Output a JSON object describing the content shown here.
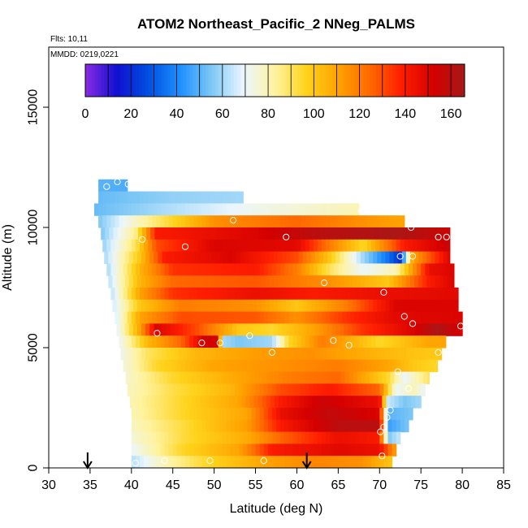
{
  "chart_data": {
    "type": "heatmap",
    "title": "ATOM2 Northeast_Pacific_2 NNeg_PALMS",
    "flights_label": "Flts: 10,11",
    "date_label": "MMDD: 0219,0221",
    "xlabel": "Latitude (deg N)",
    "ylabel": "Altitude (m)",
    "xlim": [
      30,
      85
    ],
    "ylim": [
      0,
      17500
    ],
    "x_ticks": [
      "30",
      "35",
      "40",
      "45",
      "50",
      "55",
      "60",
      "65",
      "70",
      "75",
      "80",
      "85"
    ],
    "y_ticks": [
      "0",
      "5000",
      "10000",
      "15000"
    ],
    "colorbar": {
      "range": [
        0,
        166
      ],
      "ticks": [
        "0",
        "20",
        "40",
        "60",
        "80",
        "100",
        "120",
        "140",
        "160"
      ],
      "colors": [
        "#8a2be2",
        "#1010d0",
        "#0050e0",
        "#1e90ff",
        "#7ec8f5",
        "#eaf6ff",
        "#fff3a0",
        "#ffd21a",
        "#ffa200",
        "#ff6a00",
        "#ff1e00",
        "#d40000",
        "#a81818"
      ]
    },
    "arrows_at_latitude": [
      34.7,
      61.2
    ],
    "layers": [
      {
        "ybot": 11500,
        "ytop": 12000,
        "xmin": 36,
        "xmax": 39.5,
        "values": [
          [
            36,
            50
          ],
          [
            39.5,
            48
          ]
        ]
      },
      {
        "ybot": 11000,
        "ytop": 11500,
        "xmin": 36,
        "xmax": 53.5,
        "values": [
          [
            36,
            52
          ],
          [
            45,
            58
          ],
          [
            53.5,
            60
          ]
        ]
      },
      {
        "ybot": 10500,
        "ytop": 11000,
        "xmin": 35.5,
        "xmax": 67.5,
        "values": [
          [
            35.5,
            52
          ],
          [
            45,
            62
          ],
          [
            55,
            72
          ],
          [
            67.5,
            80
          ]
        ]
      },
      {
        "ybot": 10000,
        "ytop": 10500,
        "xmin": 36,
        "xmax": 73,
        "values": [
          [
            36,
            55
          ],
          [
            41,
            80
          ],
          [
            50,
            115
          ],
          [
            60,
            125
          ],
          [
            68,
            115
          ],
          [
            73,
            110
          ]
        ]
      },
      {
        "ybot": 9500,
        "ytop": 10000,
        "xmin": 36.3,
        "xmax": 78.5,
        "values": [
          [
            36.3,
            55
          ],
          [
            40.5,
            85
          ],
          [
            43,
            140
          ],
          [
            55,
            150
          ],
          [
            62,
            160
          ],
          [
            72,
            165
          ],
          [
            78.5,
            155
          ]
        ]
      },
      {
        "ybot": 9000,
        "ytop": 9500,
        "xmin": 36.5,
        "xmax": 78.5,
        "values": [
          [
            36.5,
            58
          ],
          [
            40.5,
            90
          ],
          [
            43,
            130
          ],
          [
            50,
            150
          ],
          [
            60,
            148
          ],
          [
            64,
            120
          ],
          [
            68,
            95
          ],
          [
            73,
            140
          ],
          [
            78.5,
            155
          ]
        ]
      },
      {
        "ybot": 8500,
        "ytop": 9000,
        "xmin": 36.7,
        "xmax": 78.5,
        "values": [
          [
            36.7,
            60
          ],
          [
            41,
            100
          ],
          [
            44,
            140
          ],
          [
            52,
            150
          ],
          [
            60,
            130
          ],
          [
            64,
            100
          ],
          [
            68,
            60
          ],
          [
            71,
            35
          ],
          [
            72.5,
            20
          ],
          [
            74,
            110
          ],
          [
            78.5,
            150
          ]
        ]
      },
      {
        "ybot": 8000,
        "ytop": 8500,
        "xmin": 37,
        "xmax": 79,
        "values": [
          [
            37,
            60
          ],
          [
            41,
            105
          ],
          [
            45,
            135
          ],
          [
            55,
            140
          ],
          [
            60,
            120
          ],
          [
            64,
            90
          ],
          [
            68,
            70
          ],
          [
            72,
            80
          ],
          [
            76,
            145
          ],
          [
            79,
            150
          ]
        ]
      },
      {
        "ybot": 7500,
        "ytop": 8000,
        "xmin": 37.2,
        "xmax": 79,
        "values": [
          [
            37.2,
            62
          ],
          [
            41,
            105
          ],
          [
            45,
            125
          ],
          [
            55,
            128
          ],
          [
            64,
            115
          ],
          [
            71,
            100
          ],
          [
            76,
            140
          ],
          [
            79,
            150
          ]
        ]
      },
      {
        "ybot": 7000,
        "ytop": 7500,
        "xmin": 37.5,
        "xmax": 79.5,
        "values": [
          [
            37.5,
            62
          ],
          [
            41,
            110
          ],
          [
            45,
            135
          ],
          [
            55,
            145
          ],
          [
            62,
            140
          ],
          [
            70,
            145
          ],
          [
            79.5,
            148
          ]
        ]
      },
      {
        "ybot": 6500,
        "ytop": 7000,
        "xmin": 37.7,
        "xmax": 79.5,
        "values": [
          [
            37.7,
            65
          ],
          [
            41,
            100
          ],
          [
            46,
            120
          ],
          [
            55,
            115
          ],
          [
            60,
            100
          ],
          [
            66,
            120
          ],
          [
            72,
            150
          ],
          [
            79.5,
            150
          ]
        ]
      },
      {
        "ybot": 6000,
        "ytop": 6500,
        "xmin": 38,
        "xmax": 80,
        "values": [
          [
            38,
            65
          ],
          [
            41,
            110
          ],
          [
            46,
            130
          ],
          [
            55,
            128
          ],
          [
            60,
            115
          ],
          [
            66,
            135
          ],
          [
            72,
            148
          ],
          [
            80,
            150
          ]
        ]
      },
      {
        "ybot": 5500,
        "ytop": 6000,
        "xmin": 38.2,
        "xmax": 80,
        "values": [
          [
            38.2,
            68
          ],
          [
            41,
            110
          ],
          [
            43,
            150
          ],
          [
            48,
            130
          ],
          [
            53,
            100
          ],
          [
            57,
            95
          ],
          [
            62,
            110
          ],
          [
            68,
            135
          ],
          [
            74,
            150
          ],
          [
            77,
            165
          ],
          [
            80,
            150
          ]
        ]
      },
      {
        "ybot": 5000,
        "ytop": 5500,
        "xmin": 38.5,
        "xmax": 78,
        "values": [
          [
            38.5,
            70
          ],
          [
            42,
            105
          ],
          [
            46,
            125
          ],
          [
            49,
            155
          ],
          [
            50.5,
            150
          ],
          [
            51,
            60
          ],
          [
            53,
            55
          ],
          [
            57,
            60
          ],
          [
            59,
            95
          ],
          [
            63,
            120
          ],
          [
            70,
            95
          ],
          [
            76,
            110
          ],
          [
            78,
            110
          ]
        ]
      },
      {
        "ybot": 4500,
        "ytop": 5000,
        "xmin": 38.7,
        "xmax": 77.5,
        "values": [
          [
            38.7,
            72
          ],
          [
            42,
            90
          ],
          [
            48,
            105
          ],
          [
            55,
            112
          ],
          [
            62,
            115
          ],
          [
            70,
            105
          ],
          [
            76,
            100
          ],
          [
            77.5,
            100
          ]
        ]
      },
      {
        "ybot": 4000,
        "ytop": 4500,
        "xmin": 39,
        "xmax": 77,
        "values": [
          [
            39,
            74
          ],
          [
            43,
            95
          ],
          [
            50,
            110
          ],
          [
            58,
            115
          ],
          [
            65,
            120
          ],
          [
            71,
            110
          ],
          [
            74,
            100
          ],
          [
            77,
            95
          ]
        ]
      },
      {
        "ybot": 3500,
        "ytop": 4000,
        "xmin": 39.3,
        "xmax": 76,
        "values": [
          [
            39.3,
            76
          ],
          [
            45,
            95
          ],
          [
            52,
            108
          ],
          [
            59,
            120
          ],
          [
            65,
            125
          ],
          [
            71,
            95
          ],
          [
            73,
            70
          ],
          [
            76,
            90
          ]
        ]
      },
      {
        "ybot": 3000,
        "ytop": 3500,
        "xmin": 39.5,
        "xmax": 75.5,
        "values": [
          [
            39.5,
            78
          ],
          [
            45,
            92
          ],
          [
            52,
            105
          ],
          [
            58,
            130
          ],
          [
            64,
            140
          ],
          [
            70,
            125
          ],
          [
            72,
            70
          ],
          [
            74,
            80
          ],
          [
            75.5,
            70
          ]
        ]
      },
      {
        "ybot": 2500,
        "ytop": 3000,
        "xmin": 39.8,
        "xmax": 75,
        "values": [
          [
            39.8,
            80
          ],
          [
            46,
            95
          ],
          [
            53,
            110
          ],
          [
            58,
            140
          ],
          [
            63,
            155
          ],
          [
            70,
            145
          ],
          [
            71,
            65
          ],
          [
            73,
            55
          ],
          [
            75,
            60
          ]
        ]
      },
      {
        "ybot": 2000,
        "ytop": 2500,
        "xmin": 40,
        "xmax": 74,
        "values": [
          [
            40,
            80
          ],
          [
            46,
            95
          ],
          [
            54,
            110
          ],
          [
            58,
            145
          ],
          [
            64,
            158
          ],
          [
            70,
            150
          ],
          [
            71,
            50
          ],
          [
            74,
            55
          ]
        ]
      },
      {
        "ybot": 1500,
        "ytop": 2000,
        "xmin": 40,
        "xmax": 73.5,
        "values": [
          [
            40,
            78
          ],
          [
            47,
            95
          ],
          [
            54,
            112
          ],
          [
            58,
            140
          ],
          [
            65,
            160
          ],
          [
            70,
            160
          ],
          [
            71,
            45
          ],
          [
            73.5,
            55
          ]
        ]
      },
      {
        "ybot": 1000,
        "ytop": 1500,
        "xmin": 40,
        "xmax": 72.5,
        "values": [
          [
            40,
            75
          ],
          [
            47,
            95
          ],
          [
            54,
            108
          ],
          [
            58,
            125
          ],
          [
            65,
            145
          ],
          [
            70,
            140
          ],
          [
            71,
            55
          ],
          [
            72.5,
            65
          ]
        ]
      },
      {
        "ybot": 500,
        "ytop": 1000,
        "xmin": 40,
        "xmax": 72,
        "values": [
          [
            40,
            70
          ],
          [
            46,
            95
          ],
          [
            53,
            110
          ],
          [
            57,
            140
          ],
          [
            65,
            148
          ],
          [
            70,
            145
          ],
          [
            72,
            110
          ]
        ]
      },
      {
        "ybot": 0,
        "ytop": 500,
        "xmin": 40,
        "xmax": 71.5,
        "values": [
          [
            40,
            62
          ],
          [
            44,
            80
          ],
          [
            49,
            95
          ],
          [
            56,
            110
          ],
          [
            62,
            118
          ],
          [
            68,
            115
          ],
          [
            71.5,
            100
          ]
        ]
      }
    ],
    "sample_points": [
      [
        37,
        11700
      ],
      [
        38.3,
        11900
      ],
      [
        39.6,
        11800
      ],
      [
        52.3,
        10300
      ],
      [
        41.3,
        9500
      ],
      [
        46.5,
        9200
      ],
      [
        58.7,
        9600
      ],
      [
        67.8,
        10700
      ],
      [
        73.8,
        10000
      ],
      [
        77.1,
        9600
      ],
      [
        78.1,
        9600
      ],
      [
        72.5,
        8800
      ],
      [
        74,
        8800
      ],
      [
        63.3,
        7700
      ],
      [
        70.5,
        7300
      ],
      [
        73,
        6300
      ],
      [
        74,
        6000
      ],
      [
        79.8,
        5900
      ],
      [
        43.1,
        5600
      ],
      [
        48.5,
        5200
      ],
      [
        50.7,
        5200
      ],
      [
        54.3,
        5500
      ],
      [
        57,
        4800
      ],
      [
        64.4,
        5300
      ],
      [
        66.3,
        5100
      ],
      [
        77.1,
        4800
      ],
      [
        72.2,
        4000
      ],
      [
        73.5,
        3300
      ],
      [
        71.3,
        2400
      ],
      [
        70.9,
        2100
      ],
      [
        70.5,
        1700
      ],
      [
        70.1,
        1500
      ],
      [
        70.3,
        500
      ],
      [
        40.5,
        200
      ],
      [
        44,
        300
      ],
      [
        49.5,
        300
      ],
      [
        56,
        300
      ]
    ]
  }
}
